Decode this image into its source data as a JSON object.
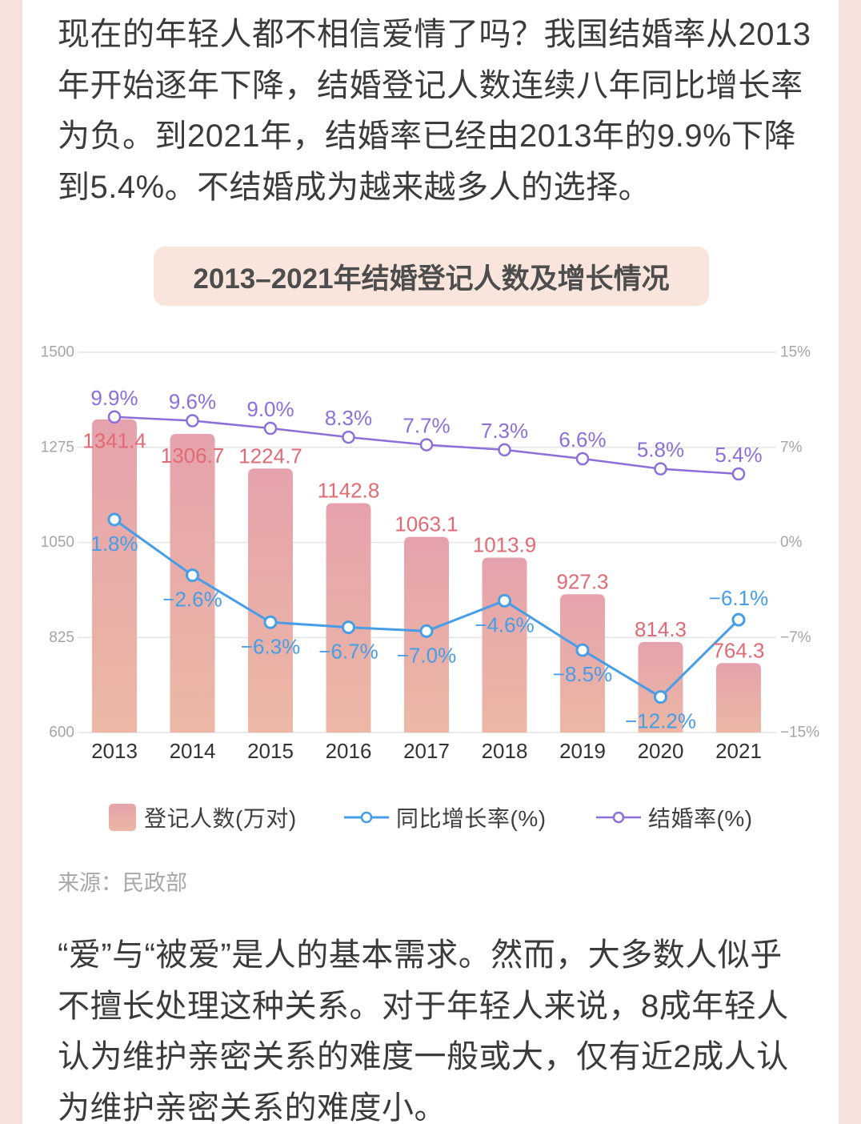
{
  "theme": {
    "page_background": "#f6e1dc",
    "card_background": "#ffffff",
    "title_pill_background": "#f9e5dc"
  },
  "intro": {
    "lines": [
      "现在的年轻人都不相信爱情了吗？我国结婚率从2013",
      "年开始逐年下降，结婚登记人数连续八年同比增长率",
      "为负。到2021年，结婚率已经由2013年的9.9%下降",
      "到5.4%。不结婚成为越来越多人的选择。"
    ]
  },
  "chart_data": {
    "type": "bar",
    "title": "2013–2021年结婚登记人数及增长情况",
    "categories": [
      "2013",
      "2014",
      "2015",
      "2016",
      "2017",
      "2018",
      "2019",
      "2020",
      "2021"
    ],
    "series": [
      {
        "name": "登记人数(万对)",
        "type": "bar",
        "axis": "left",
        "values": [
          1341.4,
          1306.7,
          1224.7,
          1142.8,
          1063.1,
          1013.9,
          927.3,
          814.3,
          764.3
        ],
        "color_top": "#e5a2ac",
        "color_bottom": "#ecb8a5",
        "label_color": "#e06b75"
      },
      {
        "name": "同比增长率(%)",
        "type": "line",
        "axis": "right",
        "values": [
          1.8,
          -2.6,
          -6.3,
          -6.7,
          -7.0,
          -4.6,
          -8.5,
          -12.2,
          -6.1
        ],
        "color": "#479ee6"
      },
      {
        "name": "结婚率(%)",
        "type": "line",
        "axis": "right",
        "values": [
          9.9,
          9.6,
          9.0,
          8.3,
          7.7,
          7.3,
          6.6,
          5.8,
          5.4
        ],
        "color": "#8c6fd8"
      }
    ],
    "ylim": [
      600,
      1500
    ],
    "yticks": [
      1500,
      1275,
      1050,
      825,
      600
    ],
    "y2lim": [
      -15,
      15
    ],
    "y2_tick_labels": [
      "15%",
      "7%",
      "0%",
      "−7%",
      "−15%"
    ],
    "grid": true,
    "legend": "bottom"
  },
  "source": "来源：民政部",
  "outro": {
    "lines": [
      "“爱”与“被爱”是人的基本需求。然而，大多数人似乎",
      "不擅长处理这种关系。对于年轻人来说，8成年轻人",
      "认为维护亲密关系的难度一般或大，仅有近2成人认",
      "为维护亲密关系的难度小。"
    ]
  }
}
